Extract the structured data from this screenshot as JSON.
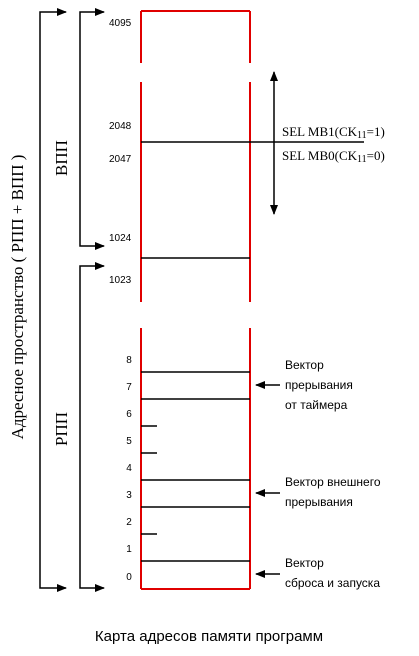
{
  "outer_label": "Адресное пространство ( РПП + ВПП )",
  "upper_region_label": "ВПП",
  "lower_region_label": "РПП",
  "addresses": {
    "a4095": "4095",
    "a2048": "2048",
    "a2047": "2047",
    "a1024": "1024",
    "a1023": "1023"
  },
  "low_addresses": [
    "8",
    "7",
    "6",
    "5",
    "4",
    "3",
    "2",
    "1",
    "0"
  ],
  "bank_select": {
    "mb1": {
      "prefix": "SEL MB1(CK",
      "sub": "11",
      "suffix": "=1)"
    },
    "mb0": {
      "prefix": "SEL MB0(CK",
      "sub": "11",
      "suffix": "=0)"
    }
  },
  "vectors": {
    "timer": [
      "Вектор",
      "прерывания",
      "от таймера"
    ],
    "external": [
      "Вектор внешнего",
      "прерывания"
    ],
    "reset": [
      "Вектор",
      "сброса и запуска"
    ]
  },
  "caption": "Карта адресов памяти программ",
  "colors": {
    "border": "#e00000",
    "ink": "#000000"
  }
}
